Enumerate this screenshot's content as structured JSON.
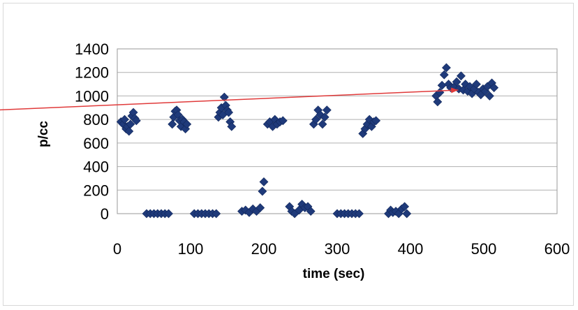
{
  "chart_data": {
    "type": "scatter",
    "xlabel": "time (sec)",
    "ylabel": "p/cc",
    "xlim": [
      0,
      600
    ],
    "ylim": [
      0,
      1400
    ],
    "xticks": [
      0,
      100,
      200,
      300,
      400,
      500,
      600
    ],
    "yticks": [
      0,
      200,
      400,
      600,
      800,
      1000,
      1200,
      1400
    ],
    "grid": "horizontal",
    "marker_color": "#1f3a7a",
    "trend_color": "#e03a3a",
    "series": [
      {
        "points": [
          [
            5,
            780
          ],
          [
            8,
            760
          ],
          [
            10,
            800
          ],
          [
            12,
            720
          ],
          [
            14,
            740
          ],
          [
            16,
            700
          ],
          [
            18,
            760
          ],
          [
            20,
            830
          ],
          [
            22,
            860
          ],
          [
            24,
            810
          ],
          [
            26,
            790
          ],
          [
            40,
            0
          ],
          [
            45,
            0
          ],
          [
            50,
            0
          ],
          [
            55,
            0
          ],
          [
            60,
            0
          ],
          [
            65,
            0
          ],
          [
            70,
            0
          ],
          [
            75,
            760
          ],
          [
            77,
            820
          ],
          [
            79,
            870
          ],
          [
            81,
            880
          ],
          [
            83,
            840
          ],
          [
            85,
            790
          ],
          [
            87,
            740
          ],
          [
            89,
            800
          ],
          [
            91,
            780
          ],
          [
            93,
            720
          ],
          [
            95,
            760
          ],
          [
            105,
            0
          ],
          [
            110,
            0
          ],
          [
            115,
            0
          ],
          [
            120,
            0
          ],
          [
            125,
            0
          ],
          [
            130,
            0
          ],
          [
            135,
            0
          ],
          [
            138,
            820
          ],
          [
            140,
            860
          ],
          [
            142,
            900
          ],
          [
            144,
            840
          ],
          [
            146,
            990
          ],
          [
            148,
            920
          ],
          [
            150,
            880
          ],
          [
            152,
            860
          ],
          [
            154,
            780
          ],
          [
            156,
            740
          ],
          [
            170,
            20
          ],
          [
            175,
            30
          ],
          [
            180,
            10
          ],
          [
            185,
            40
          ],
          [
            190,
            20
          ],
          [
            195,
            50
          ],
          [
            198,
            190
          ],
          [
            200,
            270
          ],
          [
            205,
            760
          ],
          [
            208,
            780
          ],
          [
            212,
            740
          ],
          [
            215,
            800
          ],
          [
            218,
            760
          ],
          [
            222,
            780
          ],
          [
            226,
            790
          ],
          [
            235,
            60
          ],
          [
            238,
            20
          ],
          [
            242,
            0
          ],
          [
            248,
            30
          ],
          [
            252,
            80
          ],
          [
            256,
            50
          ],
          [
            260,
            60
          ],
          [
            264,
            20
          ],
          [
            268,
            760
          ],
          [
            271,
            800
          ],
          [
            274,
            880
          ],
          [
            277,
            840
          ],
          [
            280,
            760
          ],
          [
            283,
            820
          ],
          [
            286,
            880
          ],
          [
            300,
            0
          ],
          [
            305,
            0
          ],
          [
            310,
            0
          ],
          [
            315,
            0
          ],
          [
            320,
            0
          ],
          [
            325,
            0
          ],
          [
            330,
            0
          ],
          [
            335,
            680
          ],
          [
            338,
            720
          ],
          [
            341,
            760
          ],
          [
            344,
            800
          ],
          [
            347,
            740
          ],
          [
            350,
            780
          ],
          [
            353,
            790
          ],
          [
            370,
            0
          ],
          [
            373,
            30
          ],
          [
            376,
            10
          ],
          [
            380,
            20
          ],
          [
            384,
            0
          ],
          [
            388,
            40
          ],
          [
            392,
            60
          ],
          [
            395,
            0
          ],
          [
            435,
            1000
          ],
          [
            437,
            950
          ],
          [
            440,
            1030
          ],
          [
            443,
            1090
          ],
          [
            446,
            1180
          ],
          [
            449,
            1240
          ],
          [
            452,
            1100
          ],
          [
            455,
            1070
          ],
          [
            460,
            1080
          ],
          [
            463,
            1120
          ],
          [
            466,
            1060
          ],
          [
            469,
            1170
          ],
          [
            472,
            1050
          ],
          [
            475,
            1100
          ],
          [
            478,
            1040
          ],
          [
            481,
            1080
          ],
          [
            484,
            1020
          ],
          [
            487,
            1060
          ],
          [
            490,
            1100
          ],
          [
            493,
            1030
          ],
          [
            496,
            1010
          ],
          [
            499,
            1060
          ],
          [
            502,
            1040
          ],
          [
            505,
            1080
          ],
          [
            508,
            1000
          ],
          [
            511,
            1110
          ],
          [
            514,
            1070
          ]
        ]
      }
    ],
    "trend_line": [
      [
        -165,
        880
      ],
      [
        465,
        1050
      ]
    ]
  }
}
